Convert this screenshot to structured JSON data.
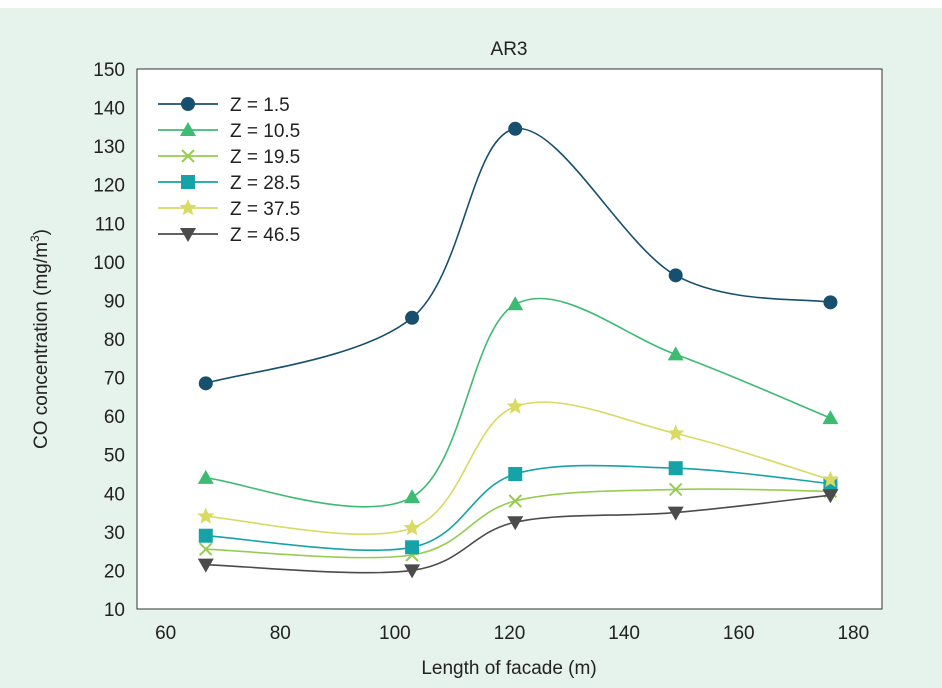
{
  "chart_data": {
    "type": "line",
    "title": "AR3",
    "xlabel": "Length of facade (m)",
    "ylabel": "CO concentration (mg/m",
    "ylabel_superscript": "3",
    "ylabel_suffix": ")",
    "xlim": [
      55,
      185
    ],
    "ylim": [
      10,
      150
    ],
    "xticks": [
      60,
      80,
      100,
      120,
      140,
      160,
      180
    ],
    "yticks": [
      10,
      20,
      30,
      40,
      50,
      60,
      70,
      80,
      90,
      100,
      110,
      120,
      130,
      140,
      150
    ],
    "x": [
      67,
      103,
      121,
      149,
      176
    ],
    "grid": false,
    "legend_position": "top-left",
    "series": [
      {
        "name": "Z = 1.5",
        "values": [
          68.5,
          85.5,
          134.5,
          96.5,
          89.5
        ],
        "color": "#17506e",
        "marker": "circle"
      },
      {
        "name": "Z = 10.5",
        "values": [
          44,
          39,
          89,
          76,
          59.5
        ],
        "color": "#3dbb72",
        "marker": "triangle-up"
      },
      {
        "name": "Z = 19.5",
        "values": [
          25.5,
          24,
          38,
          41,
          40.5
        ],
        "color": "#96cd50",
        "marker": "x"
      },
      {
        "name": "Z = 28.5",
        "values": [
          29,
          26,
          45,
          46.5,
          42.5
        ],
        "color": "#15a2a8",
        "marker": "square"
      },
      {
        "name": "Z = 37.5",
        "values": [
          34,
          31,
          62.5,
          55.5,
          43.5
        ],
        "color": "#d8da62",
        "marker": "star"
      },
      {
        "name": "Z = 46.5",
        "values": [
          21.5,
          20,
          32.5,
          35,
          39.5
        ],
        "color": "#4b4b4b",
        "marker": "triangle-down"
      }
    ]
  }
}
